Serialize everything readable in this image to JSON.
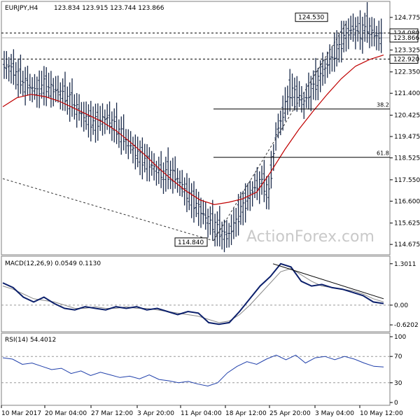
{
  "chart_data": [
    {
      "type": "candlestick",
      "panel": "price",
      "title": "EURJPY,H4",
      "ohlc_label": "123.834 123.915 123.744 123.866",
      "y_ticks": [
        "124.775",
        "123.325",
        "122.350",
        "121.400",
        "120.425",
        "119.475",
        "118.525",
        "117.550",
        "116.600",
        "115.625",
        "114.675"
      ],
      "ylim": [
        114.4,
        125.3
      ],
      "x_tick_labels": [
        "10 Mar 2017",
        "20 Mar 04:00",
        "27 Mar 12:00",
        "3 Apr 20:00",
        "11 Apr 04:00",
        "18 Apr 12:00",
        "25 Apr 20:00",
        "3 May 04:00",
        "10 May 12:00"
      ],
      "current_price_tag": "123.866",
      "hlines": [
        {
          "label": "124.080",
          "value": 124.08,
          "style": "dashed"
        },
        {
          "label": "122.920",
          "value": 122.92,
          "style": "dashed"
        }
      ],
      "fib_levels": [
        {
          "label": "38.2",
          "value": 120.7
        },
        {
          "label": "61.8",
          "value": 118.55
        }
      ],
      "annotations": [
        {
          "label": "124.530",
          "value": 124.53
        },
        {
          "label": "114.840",
          "value": 114.84
        }
      ],
      "watermark": "ActionForex.com",
      "close_series": [
        122.6,
        122.3,
        121.9,
        121.7,
        121.5,
        121.8,
        121.6,
        121.5,
        121.3,
        121.0,
        120.6,
        120.3,
        120.1,
        120.2,
        120.3,
        120.0,
        119.6,
        119.2,
        118.8,
        118.5,
        118.3,
        118.0,
        117.8,
        117.9,
        117.6,
        117.1,
        116.7,
        116.3,
        115.9,
        115.6,
        115.3,
        115.0,
        115.5,
        116.2,
        116.7,
        117.2,
        117.5,
        117.0,
        119.5,
        120.5,
        121.5,
        121.4,
        121.0,
        121.6,
        122.0,
        122.5,
        123.0,
        123.5,
        124.0,
        124.3,
        124.1,
        124.4,
        124.0,
        123.9
      ],
      "ma_series": [
        120.8,
        121.2,
        121.35,
        121.25,
        121.05,
        120.75,
        120.45,
        120.15,
        119.75,
        119.25,
        118.7,
        118.1,
        117.55,
        117.05,
        116.65,
        116.45,
        116.55,
        116.7,
        117.0,
        117.9,
        118.9,
        119.8,
        120.6,
        121.35,
        122.05,
        122.6,
        122.9,
        123.1
      ]
    },
    {
      "type": "line",
      "panel": "macd",
      "label": "MACD(12,26,9) 0.0549 0.1130",
      "y_ticks": [
        "1.3011",
        "0.00",
        "-0.6202"
      ],
      "ylim": [
        -0.75,
        1.45
      ],
      "trendline": "dark",
      "series_main": [
        0.7,
        0.55,
        0.25,
        0.1,
        0.25,
        0.05,
        -0.1,
        -0.15,
        -0.05,
        -0.1,
        -0.15,
        -0.05,
        -0.1,
        -0.05,
        -0.15,
        -0.1,
        -0.2,
        -0.3,
        -0.2,
        -0.25,
        -0.55,
        -0.6,
        -0.55,
        -0.2,
        0.2,
        0.6,
        0.9,
        1.3,
        1.2,
        0.75,
        0.6,
        0.65,
        0.55,
        0.5,
        0.4,
        0.3,
        0.1,
        0.05
      ],
      "series_signal": [
        0.6,
        0.5,
        0.35,
        0.2,
        0.15,
        0.1,
        0.0,
        -0.1,
        -0.1,
        -0.05,
        -0.1,
        -0.1,
        -0.05,
        -0.1,
        -0.1,
        -0.15,
        -0.2,
        -0.25,
        -0.3,
        -0.35,
        -0.45,
        -0.55,
        -0.5,
        -0.3,
        0.0,
        0.35,
        0.7,
        1.05,
        1.15,
        0.95,
        0.75,
        0.6,
        0.55,
        0.5,
        0.45,
        0.35,
        0.2,
        0.1
      ]
    },
    {
      "type": "line",
      "panel": "rsi",
      "label": "RSI(14) 54.4012",
      "y_ticks": [
        "100",
        "70",
        "30",
        "0"
      ],
      "ylim": [
        0,
        100
      ],
      "levels": [
        70,
        30
      ],
      "series": [
        68,
        66,
        58,
        60,
        55,
        50,
        52,
        44,
        48,
        41,
        46,
        42,
        38,
        40,
        36,
        42,
        35,
        33,
        30,
        32,
        28,
        25,
        30,
        45,
        55,
        62,
        58,
        66,
        72,
        65,
        72,
        60,
        68,
        70,
        65,
        70,
        66,
        60,
        55,
        54
      ]
    }
  ]
}
